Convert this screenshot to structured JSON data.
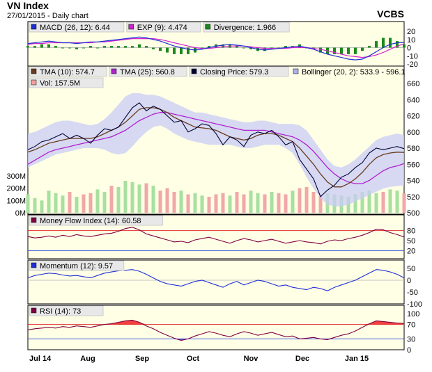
{
  "header": {
    "title": "VN Index",
    "subtitle": "27/01/2015 - Daily chart",
    "brand": "VCBS"
  },
  "chart_data": [
    {
      "type": "line",
      "panel": "macd",
      "legend": [
        {
          "label": "MACD (26, 12): 6.44",
          "color": "#1f2fd6"
        },
        {
          "label": "EXP (9): 4.474",
          "color": "#d020d0"
        },
        {
          "label": "Divergence: 1.966",
          "color": "#1a8a1a"
        }
      ],
      "y_ticks": [
        "20",
        "10",
        "0",
        "-10",
        "-20"
      ],
      "ylim": [
        -20,
        20
      ],
      "macd": [
        5,
        6,
        7,
        8,
        7,
        6,
        6,
        5,
        6,
        7,
        7,
        8,
        9,
        10,
        11,
        12,
        13,
        12,
        10,
        8,
        5,
        2,
        0,
        -2,
        -3,
        -2,
        0,
        2,
        3,
        4,
        3,
        2,
        0,
        -2,
        -3,
        -2,
        -1,
        0,
        1,
        2,
        0,
        -2,
        -5,
        -8,
        -10,
        -12,
        -14,
        -15,
        -14,
        -10,
        -5,
        0,
        4,
        6,
        6.44
      ],
      "signal": [
        4,
        5,
        5,
        6,
        6,
        6,
        6,
        6,
        6,
        6,
        7,
        7,
        8,
        9,
        10,
        11,
        11,
        11,
        11,
        10,
        8,
        6,
        4,
        2,
        0,
        -1,
        -1,
        0,
        1,
        2,
        2,
        2,
        1,
        0,
        -1,
        -1,
        -1,
        -1,
        0,
        0,
        0,
        -1,
        -2,
        -4,
        -6,
        -8,
        -10,
        -11,
        -12,
        -11,
        -9,
        -6,
        -2,
        2,
        4.474
      ]
    },
    {
      "type": "line",
      "panel": "price",
      "legend": [
        {
          "label": "TMA (10): 574.7",
          "color": "#6b3a1f"
        },
        {
          "label": "TMA (25): 560.8",
          "color": "#b020d0"
        },
        {
          "label": "Closing Price: 579.3",
          "color": "#000033"
        },
        {
          "label": "Bollinger (20, 2): 533.9 - 596.1",
          "color": "#aab0ee"
        }
      ],
      "legend2": {
        "label": "Vol: 157.5M",
        "color": "#f4a0a0"
      },
      "y_ticks": [
        "660",
        "640",
        "620",
        "600",
        "580",
        "560",
        "540",
        "520",
        "500"
      ],
      "ylim": [
        500,
        660
      ],
      "vol_ticks": [
        "300M",
        "200M",
        "100M",
        "0M"
      ],
      "vol_max": 300,
      "close": [
        578,
        582,
        588,
        590,
        594,
        598,
        592,
        596,
        592,
        586,
        596,
        604,
        602,
        606,
        618,
        630,
        636,
        626,
        632,
        628,
        620,
        612,
        614,
        600,
        604,
        610,
        608,
        598,
        584,
        594,
        590,
        582,
        596,
        600,
        598,
        602,
        594,
        584,
        588,
        566,
        554,
        542,
        520,
        528,
        534,
        544,
        548,
        556,
        562,
        574,
        580,
        578,
        580,
        582,
        579.3
      ],
      "tma10": [
        575,
        578,
        582,
        586,
        588,
        590,
        592,
        592,
        592,
        592,
        594,
        598,
        602,
        606,
        612,
        620,
        628,
        630,
        630,
        628,
        624,
        618,
        614,
        610,
        606,
        605,
        604,
        602,
        598,
        594,
        592,
        590,
        592,
        596,
        598,
        598,
        596,
        592,
        588,
        580,
        570,
        560,
        548,
        538,
        532,
        532,
        536,
        542,
        550,
        560,
        568,
        572,
        574,
        575,
        574.7
      ],
      "tma25": [
        560,
        565,
        570,
        575,
        578,
        580,
        582,
        584,
        586,
        588,
        590,
        592,
        594,
        598,
        602,
        608,
        614,
        618,
        622,
        624,
        624,
        622,
        620,
        618,
        616,
        614,
        612,
        610,
        608,
        606,
        604,
        602,
        602,
        602,
        602,
        600,
        598,
        596,
        594,
        590,
        584,
        576,
        566,
        556,
        548,
        542,
        538,
        536,
        536,
        540,
        546,
        552,
        556,
        558,
        560.8
      ],
      "bb_upper": [
        598,
        600,
        604,
        608,
        612,
        614,
        614,
        612,
        610,
        608,
        610,
        616,
        624,
        634,
        644,
        648,
        648,
        646,
        646,
        644,
        640,
        636,
        632,
        628,
        624,
        624,
        622,
        620,
        618,
        616,
        614,
        612,
        612,
        614,
        614,
        612,
        610,
        610,
        610,
        608,
        602,
        590,
        578,
        566,
        558,
        556,
        560,
        566,
        574,
        582,
        590,
        594,
        596,
        598,
        596.1
      ],
      "bb_lower": [
        556,
        560,
        564,
        568,
        572,
        574,
        576,
        578,
        580,
        580,
        580,
        578,
        574,
        572,
        574,
        582,
        592,
        600,
        606,
        608,
        604,
        598,
        594,
        590,
        588,
        586,
        584,
        584,
        584,
        584,
        582,
        580,
        580,
        582,
        584,
        584,
        584,
        580,
        574,
        560,
        544,
        530,
        518,
        510,
        508,
        508,
        510,
        514,
        518,
        522,
        526,
        530,
        532,
        533,
        533.9
      ],
      "volume": [
        150,
        120,
        100,
        180,
        160,
        140,
        170,
        130,
        150,
        160,
        190,
        170,
        220,
        210,
        260,
        250,
        230,
        240,
        220,
        180,
        200,
        170,
        180,
        150,
        160,
        140,
        130,
        150,
        160,
        140,
        170,
        150,
        180,
        160,
        150,
        170,
        160,
        150,
        180,
        200,
        210,
        170,
        140,
        160,
        150,
        140,
        130,
        150,
        170,
        180,
        160,
        170,
        190,
        180,
        157.5
      ]
    },
    {
      "type": "line",
      "panel": "mfi",
      "legend": [
        {
          "label": "Money Flow Index (14): 60.58",
          "color": "#800040"
        }
      ],
      "y_ticks": [
        "80",
        "50",
        "20"
      ],
      "ylim": [
        0,
        100
      ],
      "levels": [
        80,
        20
      ],
      "values": [
        62,
        58,
        60,
        64,
        60,
        66,
        62,
        68,
        64,
        62,
        66,
        70,
        72,
        78,
        86,
        90,
        82,
        70,
        64,
        58,
        52,
        46,
        48,
        44,
        52,
        56,
        60,
        54,
        48,
        42,
        50,
        56,
        52,
        46,
        50,
        54,
        48,
        42,
        46,
        50,
        46,
        44,
        40,
        48,
        52,
        50,
        56,
        60,
        66,
        74,
        84,
        82,
        74,
        68,
        60.58
      ]
    },
    {
      "type": "line",
      "panel": "momentum",
      "legend": [
        {
          "label": "Momentum (12): 9.57",
          "color": "#1f2fd6"
        }
      ],
      "y_ticks": [
        "50",
        "0",
        "-50",
        "-100"
      ],
      "ylim": [
        -100,
        50
      ],
      "values": [
        10,
        20,
        25,
        30,
        28,
        22,
        18,
        20,
        15,
        10,
        20,
        30,
        35,
        40,
        42,
        45,
        38,
        25,
        10,
        -5,
        -15,
        -20,
        -25,
        -15,
        -5,
        0,
        -10,
        -20,
        -30,
        -15,
        -5,
        -20,
        -10,
        0,
        -5,
        -15,
        -25,
        -20,
        -30,
        -35,
        -40,
        -30,
        -35,
        -45,
        -30,
        -20,
        -10,
        0,
        15,
        30,
        45,
        42,
        35,
        25,
        9.57
      ]
    },
    {
      "type": "line",
      "panel": "rsi",
      "legend": [
        {
          "label": "RSI (14): 73",
          "color": "#800040"
        }
      ],
      "y_ticks": [
        "100",
        "70",
        "30",
        "0"
      ],
      "ylim": [
        0,
        100
      ],
      "levels": [
        70,
        30
      ],
      "values": [
        55,
        58,
        60,
        62,
        60,
        64,
        62,
        66,
        64,
        62,
        66,
        70,
        72,
        76,
        80,
        82,
        76,
        66,
        58,
        48,
        40,
        32,
        26,
        30,
        38,
        44,
        50,
        46,
        40,
        36,
        44,
        50,
        46,
        40,
        44,
        48,
        42,
        36,
        38,
        30,
        32,
        34,
        30,
        28,
        34,
        40,
        44,
        52,
        62,
        72,
        80,
        78,
        76,
        74,
        73
      ]
    }
  ],
  "x_axis": {
    "labels": [
      "Jul 14",
      "Aug",
      "Sep",
      "Oct",
      "Nov",
      "Dec",
      "Jan 15"
    ]
  },
  "colors": {
    "plot_bg": "#ffffe6",
    "bollinger_fill": "#c8ccf4",
    "vol_up": "#a8e0a0",
    "vol_down": "#f0a8a8",
    "level_line": "#e03030",
    "overbought_fill": "#f04040",
    "oversold_fill": "#4050e0",
    "grid": "#c0c0c0"
  }
}
